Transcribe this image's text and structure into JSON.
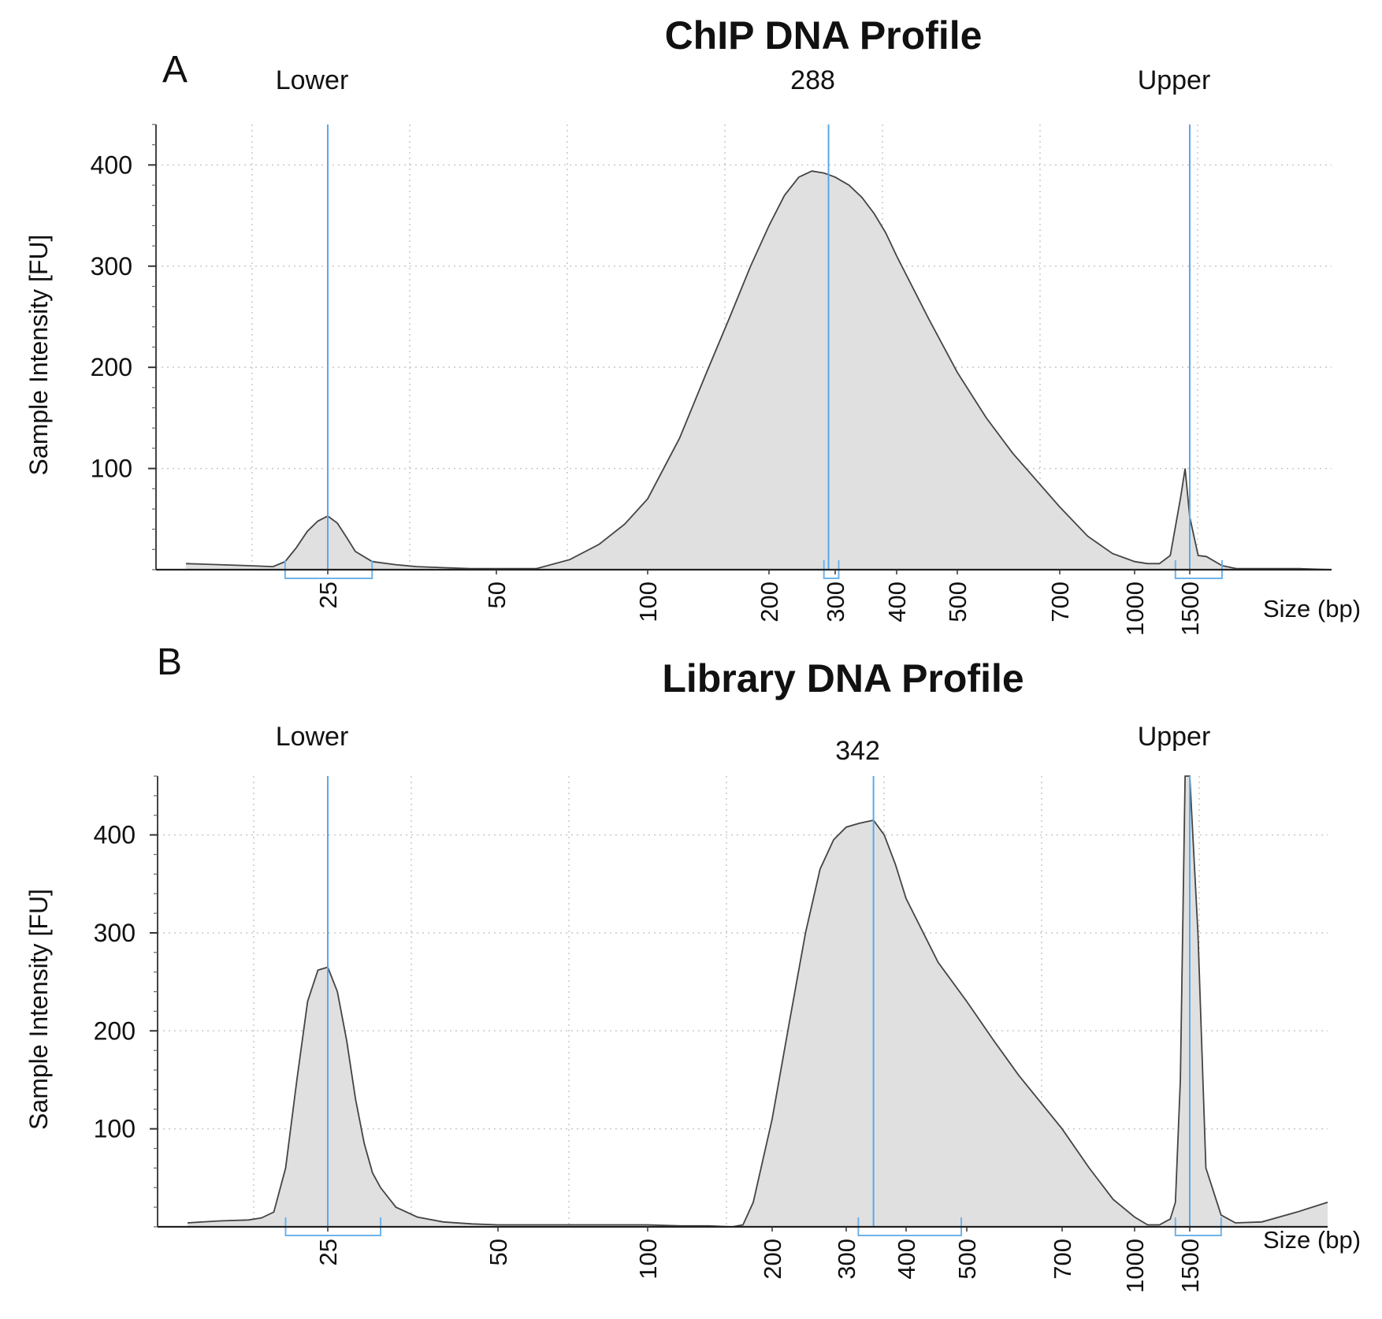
{
  "chart_data": [
    {
      "type": "area",
      "panel_letter": "A",
      "title": "ChIP DNA Profile",
      "xlabel": "Size (bp)",
      "ylabel": "Sample Intensity [FU]",
      "x_scale": "log-ladder",
      "x_ticks": [
        "25",
        "50",
        "100",
        "200",
        "300",
        "400",
        "500",
        "700",
        "1000",
        "1500"
      ],
      "y_ticks": [
        "100",
        "200",
        "300",
        "400"
      ],
      "ylim": [
        0,
        440
      ],
      "grid": true,
      "markers": [
        {
          "label": "Lower",
          "x": 25
        },
        {
          "label": "288",
          "x": 288
        },
        {
          "label": "Upper",
          "x": 1500
        }
      ],
      "bracket_regions": [
        [
          21,
          30
        ],
        [
          280,
          305
        ],
        [
          1350,
          1700
        ]
      ],
      "series": [
        {
          "x": [
            14,
            16,
            18,
            20,
            21,
            22,
            23,
            24,
            25,
            26,
            27,
            28,
            30,
            33,
            36,
            40,
            45,
            50,
            60,
            70,
            80,
            90,
            100,
            120,
            140,
            160,
            180,
            200,
            220,
            240,
            260,
            280,
            290,
            300,
            320,
            340,
            360,
            380,
            400,
            450,
            500,
            550,
            600,
            700,
            800,
            900,
            1000,
            1100,
            1200,
            1300,
            1400,
            1450,
            1500,
            1550,
            1600,
            1700,
            1800,
            2000,
            2300,
            2600
          ],
          "y": [
            6,
            5,
            4,
            3,
            8,
            22,
            38,
            48,
            53,
            46,
            32,
            18,
            8,
            5,
            3,
            2,
            1,
            1,
            1,
            10,
            25,
            45,
            70,
            130,
            195,
            250,
            300,
            340,
            370,
            388,
            394,
            392,
            390,
            388,
            380,
            368,
            352,
            333,
            310,
            248,
            195,
            150,
            115,
            62,
            33,
            16,
            8,
            6,
            6,
            14,
            70,
            100,
            52,
            14,
            13,
            4,
            1,
            1,
            1,
            0
          ]
        }
      ]
    },
    {
      "type": "area",
      "panel_letter": "B",
      "title": "Library DNA Profile",
      "xlabel": "Size (bp)",
      "ylabel": "Sample Intensity [FU]",
      "x_scale": "log-ladder",
      "x_ticks": [
        "25",
        "50",
        "100",
        "200",
        "300",
        "400",
        "500",
        "700",
        "1000",
        "1500"
      ],
      "y_ticks": [
        "100",
        "200",
        "300",
        "400"
      ],
      "ylim": [
        0,
        460
      ],
      "grid": true,
      "markers": [
        {
          "label": "Lower",
          "x": 25
        },
        {
          "label": "342",
          "x": 342
        }
      ],
      "marker_upper": {
        "label": "Upper",
        "x": 1500
      },
      "bracket_regions": [
        [
          21,
          31
        ],
        [
          318,
          490
        ],
        [
          1350,
          1700
        ]
      ],
      "series": [
        {
          "x": [
            14,
            16,
            18,
            19,
            20,
            21,
            22,
            23,
            24,
            25,
            26,
            27,
            28,
            29,
            30,
            31,
            33,
            36,
            40,
            45,
            50,
            60,
            80,
            100,
            120,
            140,
            160,
            170,
            180,
            200,
            220,
            240,
            260,
            280,
            300,
            320,
            342,
            360,
            380,
            400,
            450,
            500,
            550,
            600,
            700,
            800,
            900,
            1000,
            1100,
            1200,
            1300,
            1350,
            1400,
            1450,
            1500,
            1550,
            1600,
            1700,
            1800,
            2000,
            2300,
            2600
          ],
          "y": [
            4,
            6,
            7,
            9,
            15,
            60,
            150,
            230,
            262,
            265,
            240,
            190,
            130,
            85,
            55,
            40,
            20,
            10,
            5,
            3,
            2,
            2,
            2,
            2,
            1,
            1,
            0,
            2,
            25,
            110,
            210,
            300,
            365,
            395,
            408,
            412,
            415,
            400,
            370,
            335,
            270,
            230,
            190,
            155,
            100,
            60,
            28,
            10,
            2,
            2,
            8,
            25,
            150,
            460,
            460,
            300,
            60,
            12,
            4,
            5,
            15,
            25
          ]
        }
      ]
    }
  ]
}
